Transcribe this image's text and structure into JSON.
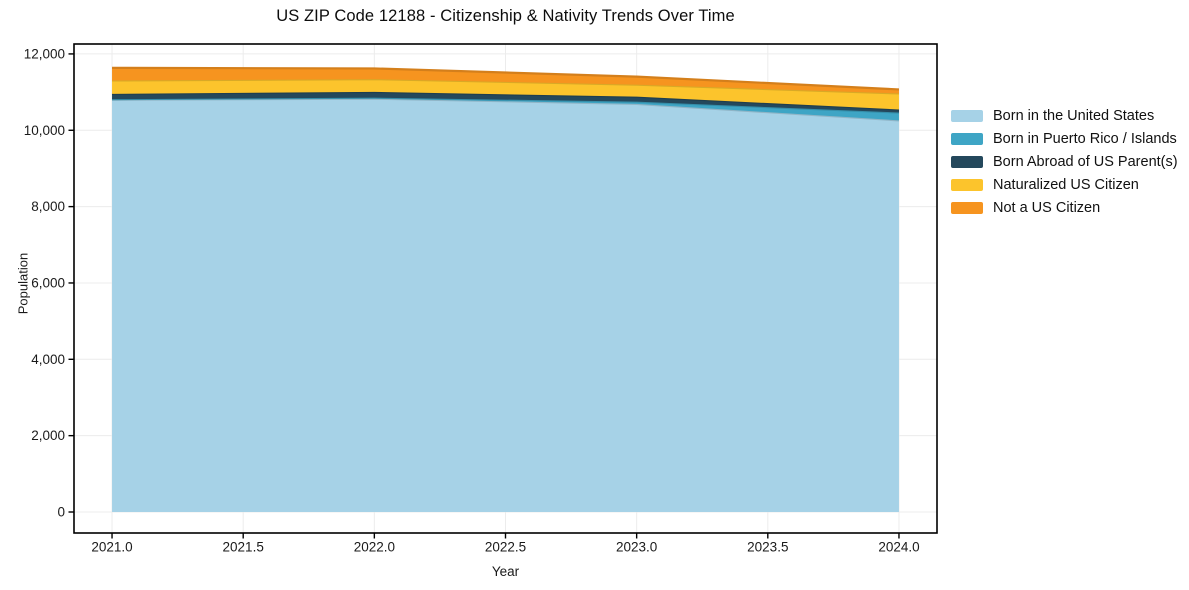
{
  "chart_data": {
    "type": "area",
    "stacked": true,
    "title": "US ZIP Code 12188 - Citizenship & Nativity Trends Over Time",
    "xlabel": "Year",
    "ylabel": "Population",
    "x": [
      2021,
      2022,
      2023,
      2024
    ],
    "series": [
      {
        "name": "Born in the United States",
        "color": "#A6D2E7",
        "values": [
          10800,
          10830,
          10690,
          10260
        ]
      },
      {
        "name": "Born in Puerto Rico / Islands",
        "color": "#3EA5C5",
        "values": [
          15,
          25,
          60,
          205
        ]
      },
      {
        "name": "Born Abroad of US Parent(s)",
        "color": "#24485C",
        "values": [
          140,
          150,
          130,
          80
        ]
      },
      {
        "name": "Naturalized US Citizen",
        "color": "#FCC42C",
        "values": [
          350,
          335,
          315,
          420
        ]
      },
      {
        "name": "Not a US Citizen",
        "color": "#F6941F",
        "values": [
          330,
          280,
          210,
          105
        ]
      }
    ],
    "stack_totals": [
      11635,
      11620,
      11405,
      11070
    ],
    "xticks": {
      "values": [
        2021.0,
        2021.5,
        2022.0,
        2022.5,
        2023.0,
        2023.5,
        2024.0
      ],
      "labels": [
        "2021.0",
        "2021.5",
        "2022.0",
        "2022.5",
        "2023.0",
        "2023.5",
        "2024.0"
      ]
    },
    "yticks": {
      "values": [
        0,
        2000,
        4000,
        6000,
        8000,
        10000,
        12000
      ],
      "labels": [
        "0",
        "2,000",
        "4,000",
        "6,000",
        "8,000",
        "10,000",
        "12,000"
      ]
    },
    "xlim": [
      2020.855,
      2024.145
    ],
    "ylim": [
      -550,
      12260
    ],
    "grid": true,
    "legend_position": "right-outside",
    "colors": {
      "spine": "#000000",
      "grid": "#ececec",
      "background": "#ffffff",
      "tick_text": "#1a1a1a"
    }
  }
}
